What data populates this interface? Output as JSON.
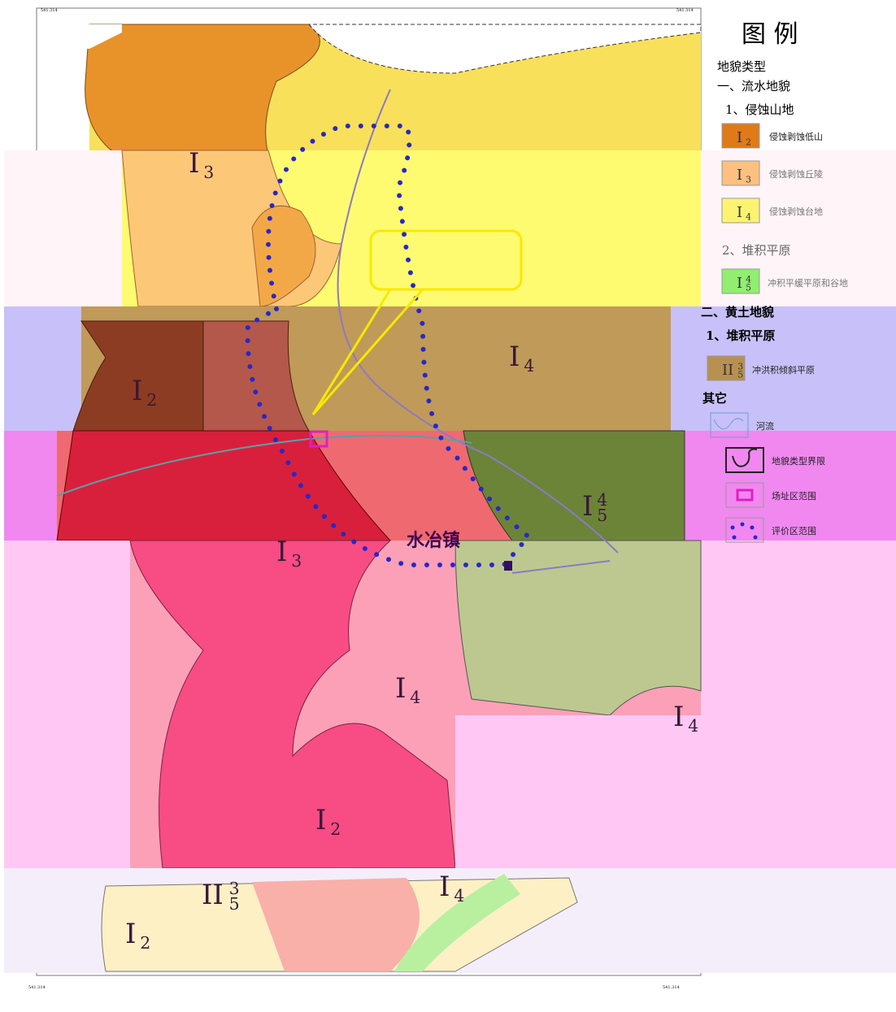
{
  "legend": {
    "title": "图 例",
    "heading": "地貌类型",
    "group1": "一、流水地貌",
    "sub1": "1、侵蚀山地",
    "items1": [
      {
        "code": "I",
        "sub": "2",
        "label": "侵蚀剥蚀低山"
      },
      {
        "code": "I",
        "sub": "3",
        "label": "侵蚀剥蚀丘陵"
      },
      {
        "code": "I",
        "sub": "4",
        "label": "侵蚀剥蚀台地"
      }
    ],
    "sub2": "2、堆积平原",
    "items2": [
      {
        "code": "I",
        "sub": "5",
        "sup": "4",
        "label": "冲积平缓平原和谷地"
      }
    ],
    "group2": "二、黄土地貌",
    "sub3": "1、堆积平原",
    "items3": [
      {
        "code": "II",
        "sub": "5",
        "sup": "3",
        "label": "冲洪积倾斜平原"
      }
    ],
    "other": "其它",
    "items4": [
      {
        "label": "河流"
      },
      {
        "label": "地貌类型界限"
      },
      {
        "label": "场址区范围"
      },
      {
        "label": "评价区范围"
      }
    ]
  },
  "map": {
    "town": "水冶镇",
    "labels": [
      {
        "code": "I",
        "sub": "3"
      },
      {
        "code": "I",
        "sub": "2"
      },
      {
        "code": "I",
        "sub": "4"
      },
      {
        "code": "I",
        "sub": "5",
        "sup": "4"
      },
      {
        "code": "I",
        "sub": "3"
      },
      {
        "code": "I",
        "sub": "4"
      },
      {
        "code": "I",
        "sub": "4"
      },
      {
        "code": "I",
        "sub": "2"
      },
      {
        "code": "II",
        "sub": "5",
        "sup": "3"
      },
      {
        "code": "I",
        "sub": "4"
      },
      {
        "code": "I",
        "sub": "2"
      }
    ],
    "corners": [
      "541.314",
      "541.314",
      "541.314",
      "541.314"
    ]
  }
}
